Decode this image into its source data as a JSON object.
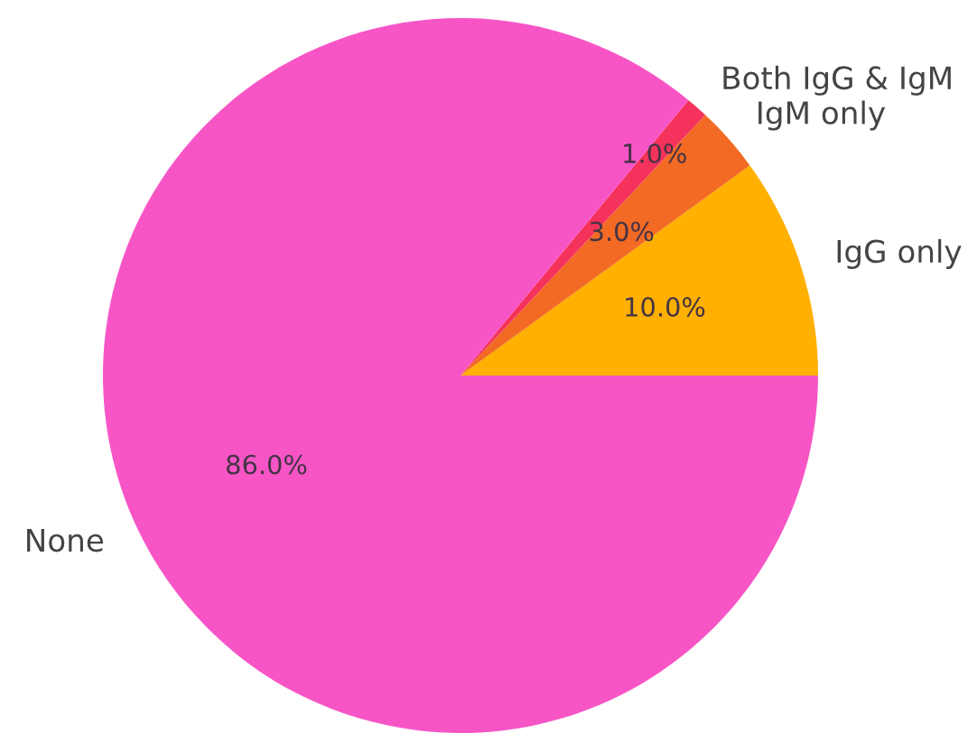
{
  "chart_data": {
    "type": "pie",
    "categories": [
      "IgG only",
      "IgM only",
      "Both IgG & IgM",
      "None"
    ],
    "values": [
      10,
      3,
      1,
      86
    ],
    "colors": [
      "#ffb000",
      "#f26a24",
      "#f5325b",
      "#f755c6"
    ],
    "value_labels": [
      "10.0%",
      "3.0%",
      "1.0%",
      "86.0%"
    ]
  }
}
